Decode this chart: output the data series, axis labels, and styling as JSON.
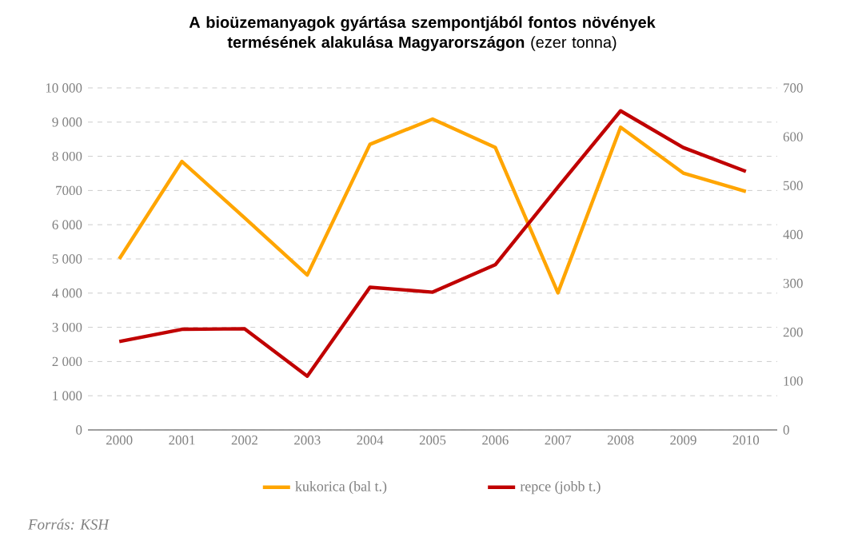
{
  "chart_data": {
    "type": "line",
    "title": "**A bioüzemanyagok gyártása szempontjából fontos növények termésének alakulása Magyarországon** (ezer tonna)",
    "annotations": [
      "Forrás: KSH"
    ],
    "categories": [
      "2000",
      "2001",
      "2002",
      "2003",
      "2004",
      "2005",
      "2006",
      "2007",
      "2008",
      "2009",
      "2010"
    ],
    "series": [
      {
        "name": "kukorica (bal t.)",
        "color": "#ffa500",
        "values": [
          5000,
          7850,
          6200,
          4530,
          8350,
          9090,
          8260,
          4010,
          8850,
          7510,
          6970
        ]
      },
      {
        "name": "repce (jobb t.)",
        "color": "#c00000",
        "axis": "y2",
        "values": [
          181,
          206,
          207,
          110,
          292,
          282,
          338,
          497,
          653,
          578,
          529
        ]
      }
    ],
    "ylim": [
      0,
      10000
    ],
    "yticks": [
      0,
      {
        "value": 1000,
        "label": "1 000"
      },
      {
        "value": 2000,
        "label": "2 000"
      },
      {
        "value": 3000,
        "label": "3 000"
      },
      {
        "value": 4000,
        "label": "4 000"
      },
      {
        "value": 5000,
        "label": "5 000"
      },
      {
        "value": 6000,
        "label": "6 000"
      },
      7000,
      {
        "value": 8000,
        "label": "8 000"
      },
      {
        "value": 9000,
        "label": "9 000"
      },
      {
        "value": 10000,
        "label": "10 000"
      }
    ],
    "y2lim": [
      0,
      700
    ],
    "y2ticks": [
      0,
      100,
      200,
      300,
      400,
      500,
      600,
      700
    ],
    "grid": "y",
    "legend": "bottom",
    "marker": "none",
    "line_style": "solid"
  }
}
